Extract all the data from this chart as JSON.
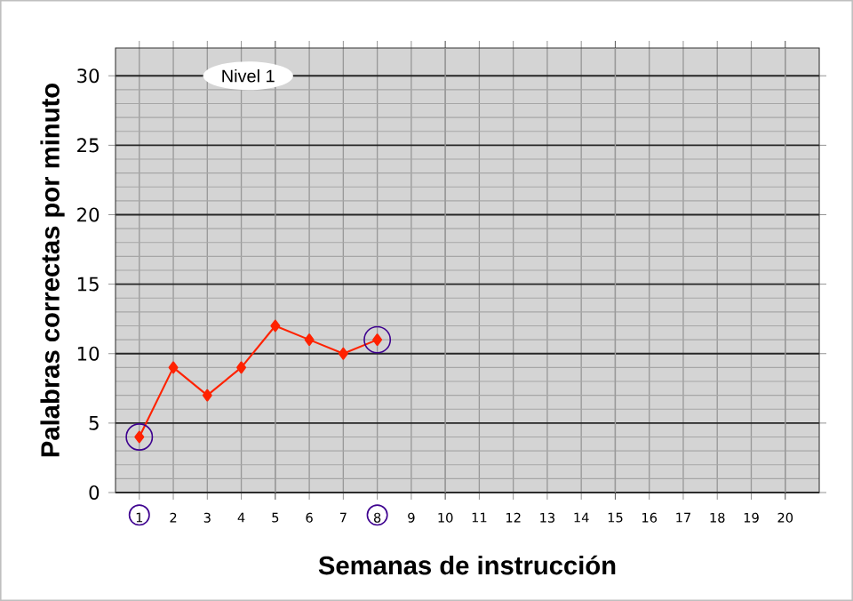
{
  "chart_data": {
    "type": "line",
    "xlabel": "Semanas de instrucción",
    "ylabel": "Palabras correctas por minuto",
    "annotations": [
      "Nivel 1"
    ],
    "x": [
      1,
      2,
      3,
      4,
      5,
      6,
      7,
      8
    ],
    "series": [
      {
        "color": "#ff2200",
        "values": [
          4,
          9,
          7,
          9,
          12,
          11,
          10,
          11
        ]
      }
    ],
    "xlim": [
      0.3,
      21
    ],
    "ylim": [
      0,
      32
    ],
    "xticks": [
      1,
      2,
      3,
      4,
      5,
      6,
      7,
      8,
      9,
      10,
      11,
      12,
      13,
      14,
      15,
      16,
      17,
      18,
      19,
      20
    ],
    "yticks": [
      0,
      5,
      10,
      15,
      20,
      25,
      30
    ],
    "grid": true,
    "marker": "diamond",
    "line_style": "solid"
  }
}
